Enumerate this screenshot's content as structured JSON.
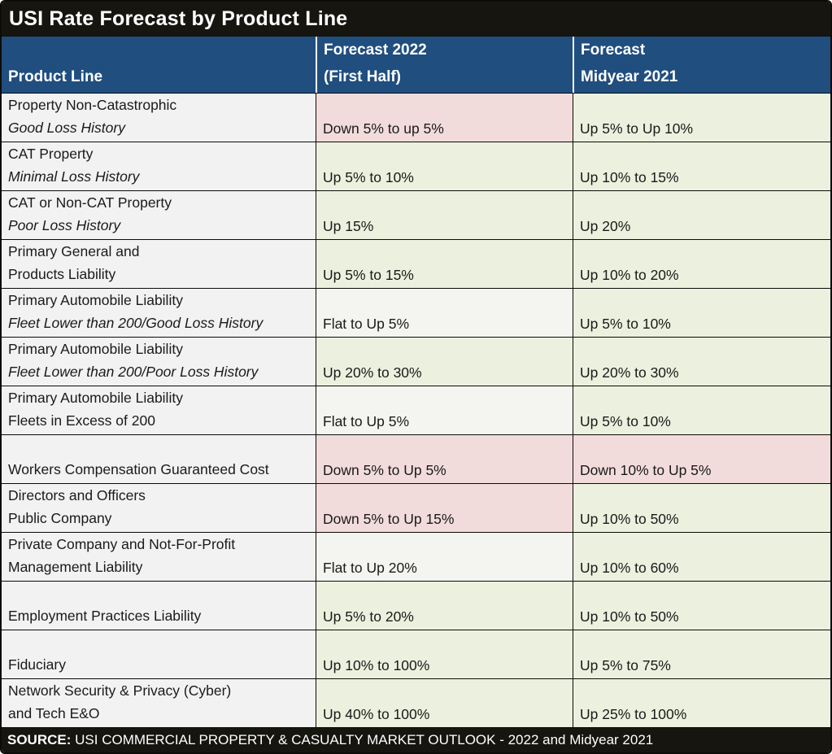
{
  "title": "USI Rate Forecast by Product Line",
  "header": {
    "product_line": "Product Line",
    "forecast_2022": {
      "line1": "Forecast 2022",
      "line2": "(First Half)"
    },
    "forecast_midyear_2021": {
      "line1": "Forecast",
      "line2": "Midyear 2021"
    }
  },
  "colors": {
    "title_bar_bg": "#161510",
    "header_bg": "#204e7f",
    "pink": "#f2dcdb",
    "green": "#ebf1de",
    "neutral": "#f4f4f1",
    "product_col_bg": "#f2f2f2"
  },
  "rows": [
    {
      "product_lines": [
        {
          "text": "Property Non-Catastrophic",
          "italic": false
        },
        {
          "text": "Good Loss History",
          "italic": true
        }
      ],
      "forecast_2022": {
        "text": "Down 5% to up 5%",
        "tone": "pink"
      },
      "forecast_midyear_2021": {
        "text": "Up 5% to Up 10%",
        "tone": "green"
      }
    },
    {
      "product_lines": [
        {
          "text": "CAT Property",
          "italic": false
        },
        {
          "text": "Minimal Loss History",
          "italic": true
        }
      ],
      "forecast_2022": {
        "text": "Up 5% to 10%",
        "tone": "green"
      },
      "forecast_midyear_2021": {
        "text": "Up 10% to 15%",
        "tone": "green"
      }
    },
    {
      "product_lines": [
        {
          "text": "CAT or Non-CAT Property",
          "italic": false
        },
        {
          "text": "Poor Loss History",
          "italic": true
        }
      ],
      "forecast_2022": {
        "text": "Up 15%",
        "tone": "green"
      },
      "forecast_midyear_2021": {
        "text": "Up 20%",
        "tone": "green"
      }
    },
    {
      "product_lines": [
        {
          "text": "Primary General and",
          "italic": false
        },
        {
          "text": "Products Liability",
          "italic": false
        }
      ],
      "forecast_2022": {
        "text": "Up 5% to 15%",
        "tone": "green"
      },
      "forecast_midyear_2021": {
        "text": "Up 10% to 20%",
        "tone": "green"
      }
    },
    {
      "product_lines": [
        {
          "text": "Primary Automobile Liability",
          "italic": false
        },
        {
          "text": "Fleet Lower than 200/Good Loss History",
          "italic": true
        }
      ],
      "forecast_2022": {
        "text": "Flat to Up 5%",
        "tone": "neutral"
      },
      "forecast_midyear_2021": {
        "text": "Up 5% to 10%",
        "tone": "green"
      }
    },
    {
      "product_lines": [
        {
          "text": "Primary Automobile Liability",
          "italic": false
        },
        {
          "text": "Fleet Lower than 200/Poor Loss History",
          "italic": true
        }
      ],
      "forecast_2022": {
        "text": "Up 20% to 30%",
        "tone": "green"
      },
      "forecast_midyear_2021": {
        "text": "Up 20% to 30%",
        "tone": "green"
      }
    },
    {
      "product_lines": [
        {
          "text": "Primary Automobile Liability",
          "italic": false
        },
        {
          "text": "Fleets in Excess of 200",
          "italic": false
        }
      ],
      "forecast_2022": {
        "text": "Flat to Up 5%",
        "tone": "neutral"
      },
      "forecast_midyear_2021": {
        "text": "Up 5% to 10%",
        "tone": "green"
      }
    },
    {
      "product_lines": [
        {
          "text": "Workers Compensation Guaranteed Cost",
          "italic": false
        }
      ],
      "forecast_2022": {
        "text": "Down 5% to Up 5%",
        "tone": "pink"
      },
      "forecast_midyear_2021": {
        "text": "Down 10% to Up 5%",
        "tone": "pink"
      }
    },
    {
      "product_lines": [
        {
          "text": "Directors and Officers",
          "italic": false
        },
        {
          "text": "Public Company",
          "italic": false
        }
      ],
      "forecast_2022": {
        "text": "Down 5% to Up 15%",
        "tone": "pink"
      },
      "forecast_midyear_2021": {
        "text": "Up 10% to 50%",
        "tone": "green"
      }
    },
    {
      "product_lines": [
        {
          "text": "Private Company and Not-For-Profit",
          "italic": false
        },
        {
          "text": "Management Liability",
          "italic": false
        }
      ],
      "forecast_2022": {
        "text": "Flat to Up 20%",
        "tone": "neutral"
      },
      "forecast_midyear_2021": {
        "text": "Up 10% to 60%",
        "tone": "green"
      }
    },
    {
      "product_lines": [
        {
          "text": "Employment Practices Liability",
          "italic": false
        }
      ],
      "forecast_2022": {
        "text": "Up 5% to 20%",
        "tone": "green"
      },
      "forecast_midyear_2021": {
        "text": "Up 10% to 50%",
        "tone": "green"
      }
    },
    {
      "product_lines": [
        {
          "text": "Fiduciary",
          "italic": false
        }
      ],
      "forecast_2022": {
        "text": "Up 10% to 100%",
        "tone": "green"
      },
      "forecast_midyear_2021": {
        "text": "Up 5% to 75%",
        "tone": "green"
      }
    },
    {
      "product_lines": [
        {
          "text": "Network Security & Privacy (Cyber)",
          "italic": false
        },
        {
          "text": "and Tech E&O",
          "italic": false
        }
      ],
      "forecast_2022": {
        "text": "Up 40% to 100%",
        "tone": "green"
      },
      "forecast_midyear_2021": {
        "text": "Up 25% to 100%",
        "tone": "green"
      }
    }
  ],
  "source": {
    "label": "SOURCE:",
    "text": " USI COMMERCIAL PROPERTY & CASUALTY MARKET OUTLOOK - 2022 and Midyear 2021"
  }
}
